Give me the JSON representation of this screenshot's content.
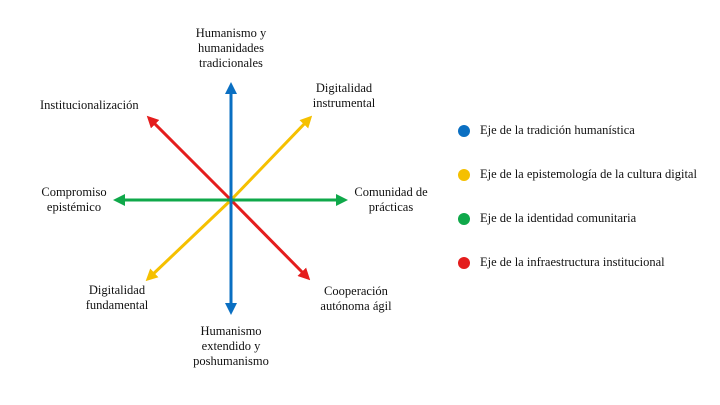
{
  "labels": {
    "top": "Humanismo y\nhumanidades\ntradicionales",
    "bottom": "Humanismo\nextendido y\nposhumanismo",
    "left": "Compromiso\nepistémico",
    "right": "Comunidad de\nprácticas",
    "top_left": "Institucionalización",
    "top_right": "Digitalidad\ninstrumental",
    "bottom_left": "Digitalidad\nfundamental",
    "bottom_right": "Cooperación\nautónoma ágil"
  },
  "axes": [
    {
      "name": "Eje de la tradición humanística",
      "color": "#0a6fc2"
    },
    {
      "name": "Eje de la epistemología de la cultura digital",
      "color": "#f5c000"
    },
    {
      "name": "Eje de la identidad comunitaria",
      "color": "#0fa84a"
    },
    {
      "name": "Eje de la infraestructura institucional",
      "color": "#e41d1d"
    }
  ]
}
